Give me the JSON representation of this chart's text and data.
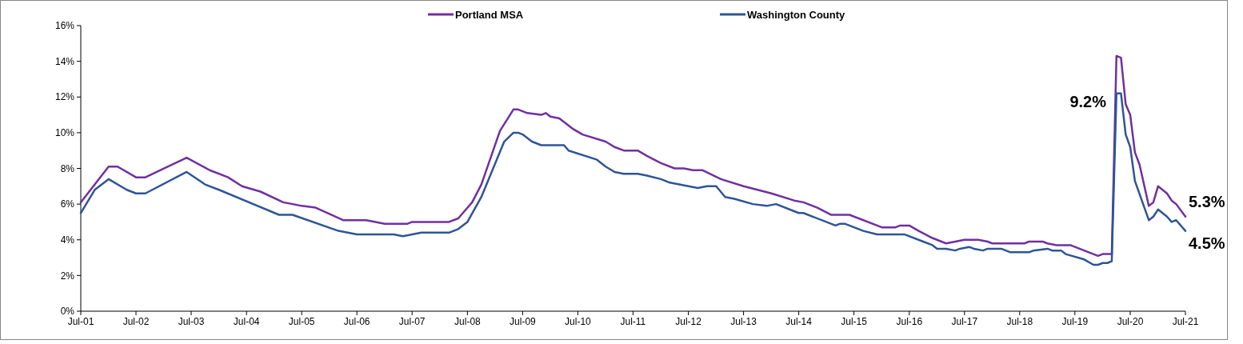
{
  "chart_data": {
    "type": "line",
    "x": [
      "2001-07",
      "2002-01",
      "2002-03",
      "2002-07",
      "2002-09",
      "2003-06",
      "2003-11",
      "2004-03",
      "2004-06",
      "2004-10",
      "2005-03",
      "2005-07",
      "2005-10",
      "2006-04",
      "2006-09",
      "2007-01",
      "2007-06",
      "2007-07",
      "2008-03",
      "2008-05",
      "2008-08",
      "2008-10",
      "2009-02",
      "2009-05",
      "2009-06",
      "2009-08",
      "2009-11",
      "2009-12",
      "2010-01",
      "2010-03",
      "2010-06",
      "2010-08",
      "2011-01",
      "2011-03",
      "2011-05",
      "2011-08",
      "2011-10",
      "2012-01",
      "2012-04",
      "2012-06",
      "2012-08",
      "2012-10",
      "2013-02",
      "2013-07",
      "2014-01",
      "2014-06",
      "2014-08",
      "2014-11",
      "2015-02",
      "2015-06",
      "2016-01",
      "2016-04",
      "2016-05",
      "2016-07",
      "2016-09",
      "2016-12",
      "2017-03",
      "2017-05",
      "2017-07",
      "2017-10",
      "2017-12",
      "2018-01",
      "2018-08",
      "2018-09",
      "2018-12",
      "2019-01",
      "2019-03",
      "2019-06",
      "2019-12",
      "2020-01",
      "2020-03",
      "2020-04",
      "2020-05",
      "2020-06",
      "2020-07",
      "2020-08",
      "2020-09",
      "2020-11",
      "2020-12",
      "2021-01",
      "2021-03",
      "2021-04",
      "2021-05",
      "2021-07"
    ],
    "series": [
      {
        "name": "Portland MSA",
        "color": "#7030a0",
        "values": [
          6.1,
          8.1,
          8.1,
          7.5,
          7.5,
          8.6,
          7.9,
          7.5,
          7.0,
          6.7,
          6.1,
          5.9,
          5.8,
          5.1,
          5.1,
          4.9,
          4.9,
          5.0,
          5.0,
          5.2,
          6.1,
          7.1,
          10.1,
          11.3,
          11.3,
          11.1,
          11.0,
          11.1,
          10.9,
          10.8,
          10.2,
          9.9,
          9.5,
          9.2,
          9.0,
          9.0,
          8.7,
          8.3,
          8.0,
          8.0,
          7.9,
          7.9,
          7.4,
          7.0,
          6.6,
          6.2,
          6.1,
          5.8,
          5.4,
          5.4,
          4.7,
          4.7,
          4.8,
          4.8,
          4.5,
          4.1,
          3.8,
          3.9,
          4.0,
          4.0,
          3.9,
          3.8,
          3.8,
          3.9,
          3.9,
          3.8,
          3.7,
          3.7,
          3.1,
          3.2,
          3.2,
          14.3,
          14.2,
          11.6,
          11.0,
          8.9,
          8.2,
          5.9,
          6.1,
          7.0,
          6.6,
          6.2,
          6.0,
          5.3
        ]
      },
      {
        "name": "Washington County",
        "color": "#2e5597",
        "x": [
          "2001-07",
          "2001-10",
          "2002-01",
          "2002-05",
          "2002-07",
          "2002-09",
          "2003-06",
          "2003-10",
          "2004-01",
          "2005-02",
          "2005-05",
          "2006-03",
          "2006-07",
          "2007-03",
          "2007-05",
          "2007-07",
          "2007-09",
          "2008-03",
          "2008-05",
          "2008-07",
          "2008-10",
          "2009-03",
          "2009-05",
          "2009-06",
          "2009-07",
          "2009-09",
          "2009-11",
          "2010-04",
          "2010-05",
          "2010-11",
          "2011-01",
          "2011-03",
          "2011-05",
          "2011-08",
          "2011-10",
          "2012-01",
          "2012-03",
          "2012-09",
          "2012-11",
          "2013-01",
          "2013-03",
          "2013-05",
          "2013-09",
          "2013-12",
          "2014-02",
          "2014-07",
          "2014-08",
          "2015-03",
          "2015-04",
          "2015-05",
          "2015-09",
          "2015-12",
          "2016-06",
          "2016-10",
          "2016-12",
          "2017-01",
          "2017-03",
          "2017-05",
          "2017-06",
          "2017-08",
          "2017-09",
          "2017-11",
          "2017-12",
          "2018-03",
          "2018-05",
          "2018-09",
          "2018-10",
          "2019-01",
          "2019-02",
          "2019-04",
          "2019-05",
          "2019-09",
          "2019-11",
          "2019-12",
          "2020-01",
          "2020-02",
          "2020-03",
          "2020-04",
          "2020-05",
          "2020-06",
          "2020-07",
          "2020-08",
          "2020-11",
          "2020-12",
          "2021-01",
          "2021-03",
          "2021-04",
          "2021-05",
          "2021-07"
        ],
        "values": [
          5.5,
          6.8,
          7.4,
          6.8,
          6.6,
          6.6,
          7.8,
          7.1,
          6.8,
          5.4,
          5.4,
          4.5,
          4.3,
          4.3,
          4.2,
          4.3,
          4.4,
          4.4,
          4.6,
          5.0,
          6.4,
          9.5,
          10.0,
          10.0,
          9.9,
          9.5,
          9.3,
          9.3,
          9.0,
          8.5,
          8.1,
          7.8,
          7.7,
          7.7,
          7.6,
          7.4,
          7.2,
          6.9,
          7.0,
          7.0,
          6.4,
          6.3,
          6.0,
          5.9,
          6.0,
          5.5,
          5.5,
          4.8,
          4.9,
          4.9,
          4.5,
          4.3,
          4.3,
          3.9,
          3.7,
          3.5,
          3.5,
          3.4,
          3.5,
          3.6,
          3.5,
          3.4,
          3.5,
          3.5,
          3.3,
          3.3,
          3.4,
          3.5,
          3.4,
          3.4,
          3.2,
          2.9,
          2.6,
          2.6,
          2.7,
          2.7,
          2.8,
          12.2,
          12.2,
          9.9,
          9.2,
          7.3,
          5.1,
          5.3,
          5.7,
          5.3,
          5.0,
          5.1,
          4.5
        ]
      }
    ],
    "xlim": [
      "2001-07",
      "2021-07"
    ],
    "xticks": [
      {
        "value": "2001-07",
        "label": "Jul-01"
      },
      {
        "value": "2002-07",
        "label": "Jul-02"
      },
      {
        "value": "2003-07",
        "label": "Jul-03"
      },
      {
        "value": "2004-07",
        "label": "Jul-04"
      },
      {
        "value": "2005-07",
        "label": "Jul-05"
      },
      {
        "value": "2006-07",
        "label": "Jul-06"
      },
      {
        "value": "2007-07",
        "label": "Jul-07"
      },
      {
        "value": "2008-07",
        "label": "Jul-08"
      },
      {
        "value": "2009-07",
        "label": "Jul-09"
      },
      {
        "value": "2010-07",
        "label": "Jul-10"
      },
      {
        "value": "2011-07",
        "label": "Jul-11"
      },
      {
        "value": "2012-07",
        "label": "Jul-12"
      },
      {
        "value": "2013-07",
        "label": "Jul-13"
      },
      {
        "value": "2014-07",
        "label": "Jul-14"
      },
      {
        "value": "2015-07",
        "label": "Jul-15"
      },
      {
        "value": "2016-07",
        "label": "Jul-16"
      },
      {
        "value": "2017-07",
        "label": "Jul-17"
      },
      {
        "value": "2018-07",
        "label": "Jul-18"
      },
      {
        "value": "2019-07",
        "label": "Jul-19"
      },
      {
        "value": "2020-07",
        "label": "Jul-20"
      },
      {
        "value": "2021-07",
        "label": "Jul-21"
      }
    ],
    "ylim": [
      0,
      16
    ],
    "yticks": [
      {
        "value": 0,
        "label": "0%"
      },
      {
        "value": 2,
        "label": "2%"
      },
      {
        "value": 4,
        "label": "4%"
      },
      {
        "value": 6,
        "label": "6%"
      },
      {
        "value": 8,
        "label": "8%"
      },
      {
        "value": 10,
        "label": "10%"
      },
      {
        "value": 12,
        "label": "12%"
      },
      {
        "value": 14,
        "label": "14%"
      },
      {
        "value": 16,
        "label": "16%"
      }
    ],
    "annotations": [
      {
        "text": "9.2%",
        "x": "2020-07",
        "y": 9.2
      },
      {
        "text": "5.3%",
        "x": "2021-07",
        "y": 5.3
      },
      {
        "text": "4.5%",
        "x": "2021-07",
        "y": 4.5
      }
    ],
    "legend": "top",
    "grid": false,
    "marker": "none",
    "line_style": "solid"
  }
}
